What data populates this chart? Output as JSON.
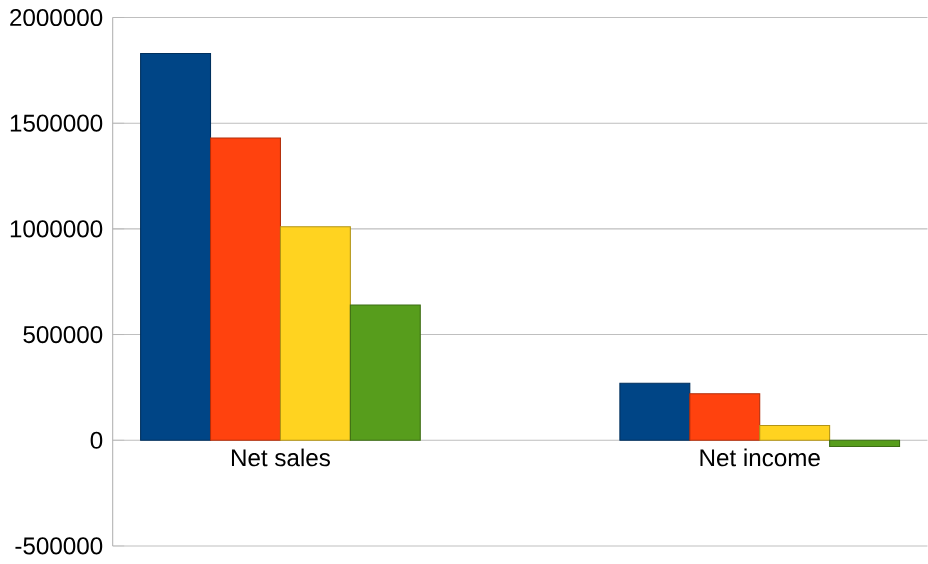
{
  "chart_data": {
    "type": "bar",
    "categories": [
      "Net sales",
      "Net income"
    ],
    "series": [
      {
        "color": "#004586",
        "values": [
          1830000,
          270000
        ]
      },
      {
        "color": "#ff420e",
        "values": [
          1430000,
          220000
        ]
      },
      {
        "color": "#ffd320",
        "values": [
          1010000,
          70000
        ]
      },
      {
        "color": "#579d1c",
        "values": [
          640000,
          -30000
        ]
      }
    ],
    "ylim": [
      -500000,
      2000000
    ],
    "yticks": [
      -500000,
      0,
      500000,
      1000000,
      1500000,
      2000000
    ],
    "grid": "y"
  }
}
